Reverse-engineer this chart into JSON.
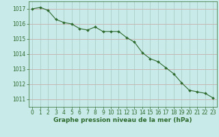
{
  "x": [
    0,
    1,
    2,
    3,
    4,
    5,
    6,
    7,
    8,
    9,
    10,
    11,
    12,
    13,
    14,
    15,
    16,
    17,
    18,
    19,
    20,
    21,
    22,
    23
  ],
  "y": [
    1017.0,
    1017.1,
    1016.9,
    1016.3,
    1016.1,
    1016.0,
    1015.7,
    1015.6,
    1015.8,
    1015.5,
    1015.5,
    1015.5,
    1015.1,
    1014.8,
    1014.1,
    1013.7,
    1013.5,
    1013.1,
    1012.7,
    1012.1,
    1011.6,
    1011.5,
    1011.4,
    1011.1
  ],
  "line_color": "#2d6a2d",
  "marker_color": "#2d6a2d",
  "bg_color": "#c8eae8",
  "grid_color_major": "#d4a0a0",
  "grid_color_minor": "#c8d8d8",
  "xlabel": "Graphe pression niveau de la mer (hPa)",
  "xlabel_color": "#2d6a2d",
  "tick_color": "#2d6a2d",
  "ylim": [
    1010.5,
    1017.5
  ],
  "xlim": [
    -0.5,
    23.5
  ],
  "yticks": [
    1011,
    1012,
    1013,
    1014,
    1015,
    1016,
    1017
  ],
  "xticks": [
    0,
    1,
    2,
    3,
    4,
    5,
    6,
    7,
    8,
    9,
    10,
    11,
    12,
    13,
    14,
    15,
    16,
    17,
    18,
    19,
    20,
    21,
    22,
    23
  ],
  "tick_fontsize": 5.5,
  "xlabel_fontsize": 6.5,
  "ylabel_fontsize": 5.5
}
